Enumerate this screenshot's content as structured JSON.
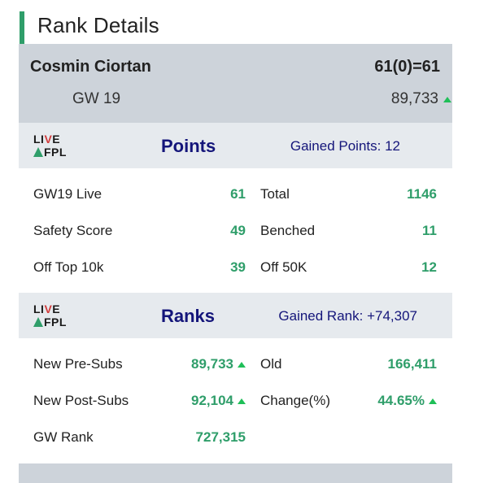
{
  "title": "Rank Details",
  "header": {
    "name": "Cosmin Ciortan",
    "score": "61(0)=61",
    "gw": "GW 19",
    "rank": "89,733"
  },
  "logo": {
    "line1_a": "LI",
    "line1_v": "V",
    "line1_e": "E",
    "line2": "FPL"
  },
  "points": {
    "title": "Points",
    "gained": "Gained Points: 12",
    "rows": [
      {
        "l1": "GW19 Live",
        "v1": "61",
        "l2": "Total",
        "v2": "1146"
      },
      {
        "l1": "Safety Score",
        "v1": "49",
        "l2": "Benched",
        "v2": "11"
      },
      {
        "l1": "Off Top 10k",
        "v1": "39",
        "l2": "Off 50K",
        "v2": "12"
      }
    ]
  },
  "ranks": {
    "title": "Ranks",
    "gained": "Gained Rank: +74,307",
    "rows": [
      {
        "l1": "New Pre-Subs",
        "v1": "89,733",
        "l2": "Old",
        "v2": "166,411"
      },
      {
        "l1": "New Post-Subs",
        "v1": "92,104",
        "l2": "Change(%)",
        "v2": "44.65%"
      },
      {
        "l1": "GW Rank",
        "v1": "727,315"
      }
    ]
  },
  "colors": {
    "accent": "#2f9e6a",
    "navy": "#14157a",
    "panel": "#cdd3da",
    "up": "#1fbf58"
  }
}
